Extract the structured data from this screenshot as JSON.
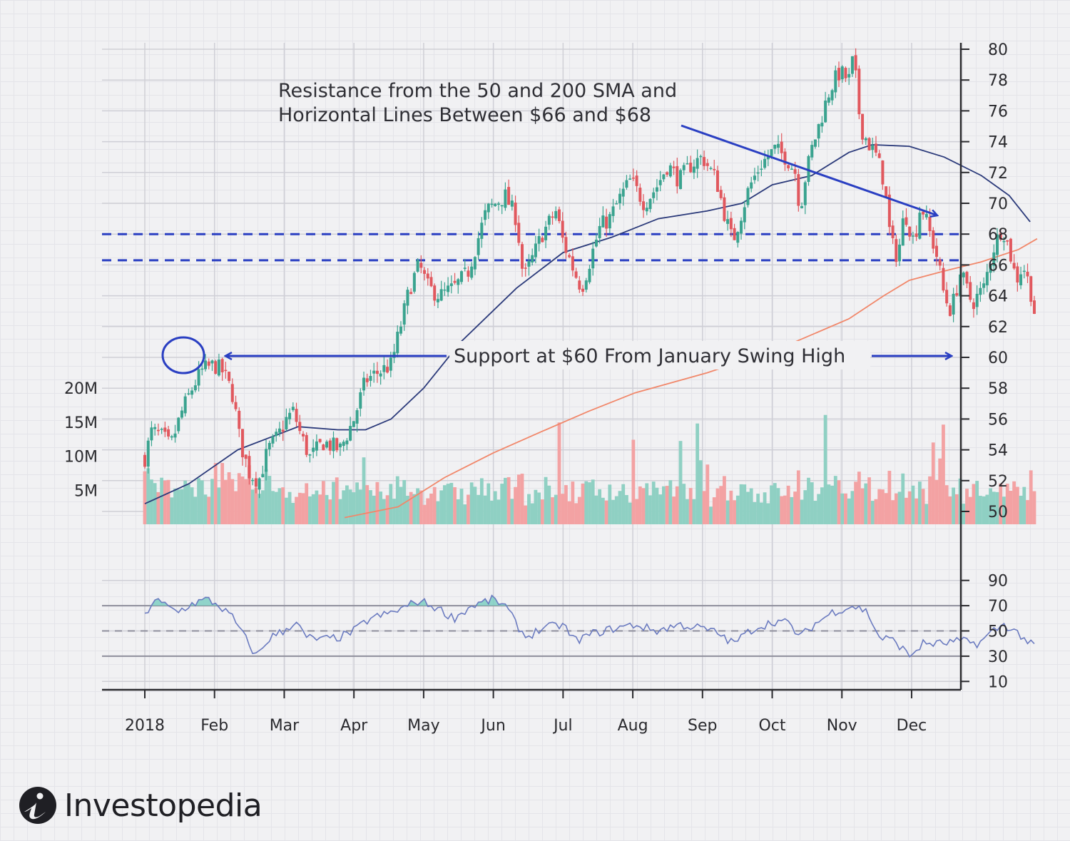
{
  "chart_data": {
    "type": "candlestick",
    "title": "",
    "xlabel": "",
    "ylabel": "",
    "x_tick_labels": [
      "2018",
      "Feb",
      "Mar",
      "Apr",
      "May",
      "Jun",
      "Jul",
      "Aug",
      "Sep",
      "Oct",
      "Nov",
      "Dec"
    ],
    "price_axis": {
      "ylim": [
        50,
        80
      ],
      "ticks": [
        50,
        52,
        54,
        56,
        58,
        60,
        62,
        64,
        66,
        68,
        70,
        72,
        74,
        76,
        78,
        80
      ]
    },
    "volume_axis": {
      "ticks": [
        5,
        10,
        15,
        20
      ],
      "tick_labels": [
        "5M",
        "10M",
        "15M",
        "20M"
      ]
    },
    "rsi_axis": {
      "ylim": [
        0,
        100
      ],
      "ticks": [
        10,
        30,
        50,
        70,
        90
      ],
      "reference_lines": [
        30,
        50,
        70
      ]
    },
    "horizontal_levels": [
      66.3,
      68.0
    ],
    "price_path": [
      {
        "date": "2018-01-01",
        "price": 53.5
      },
      {
        "date": "2018-01-04",
        "price": 55.2
      },
      {
        "date": "2018-01-09",
        "price": 54.8
      },
      {
        "date": "2018-01-12",
        "price": 54.2
      },
      {
        "date": "2018-01-17",
        "price": 56.5
      },
      {
        "date": "2018-01-22",
        "price": 58.2
      },
      {
        "date": "2018-01-26",
        "price": 59.2
      },
      {
        "date": "2018-01-31",
        "price": 59.5
      },
      {
        "date": "2018-02-04",
        "price": 59.0
      },
      {
        "date": "2018-02-08",
        "price": 57.5
      },
      {
        "date": "2018-02-11",
        "price": 54.5
      },
      {
        "date": "2018-02-15",
        "price": 52.5
      },
      {
        "date": "2018-02-19",
        "price": 52.0
      },
      {
        "date": "2018-02-23",
        "price": 54.0
      },
      {
        "date": "2018-02-27",
        "price": 54.8
      },
      {
        "date": "2018-03-03",
        "price": 56.0
      },
      {
        "date": "2018-03-06",
        "price": 56.5
      },
      {
        "date": "2018-03-09",
        "price": 55.0
      },
      {
        "date": "2018-03-13",
        "price": 53.5
      },
      {
        "date": "2018-03-19",
        "price": 54.5
      },
      {
        "date": "2018-03-26",
        "price": 54.0
      },
      {
        "date": "2018-04-01",
        "price": 56.0
      },
      {
        "date": "2018-04-06",
        "price": 58.5
      },
      {
        "date": "2018-04-11",
        "price": 59.0
      },
      {
        "date": "2018-04-17",
        "price": 59.5
      },
      {
        "date": "2018-04-21",
        "price": 62.0
      },
      {
        "date": "2018-04-25",
        "price": 64.5
      },
      {
        "date": "2018-04-29",
        "price": 66.0
      },
      {
        "date": "2018-05-03",
        "price": 64.5
      },
      {
        "date": "2018-05-08",
        "price": 64.0
      },
      {
        "date": "2018-05-14",
        "price": 64.5
      },
      {
        "date": "2018-05-20",
        "price": 65.5
      },
      {
        "date": "2018-05-24",
        "price": 67.5
      },
      {
        "date": "2018-05-28",
        "price": 69.5
      },
      {
        "date": "2018-06-01",
        "price": 70.0
      },
      {
        "date": "2018-06-05",
        "price": 70.5
      },
      {
        "date": "2018-06-10",
        "price": 69.0
      },
      {
        "date": "2018-06-13",
        "price": 65.0
      },
      {
        "date": "2018-06-17",
        "price": 66.5
      },
      {
        "date": "2018-06-21",
        "price": 68.0
      },
      {
        "date": "2018-06-27",
        "price": 69.5
      },
      {
        "date": "2018-06-30",
        "price": 67.5
      },
      {
        "date": "2018-07-05",
        "price": 65.5
      },
      {
        "date": "2018-07-08",
        "price": 64.5
      },
      {
        "date": "2018-07-12",
        "price": 66.5
      },
      {
        "date": "2018-07-16",
        "price": 68.5
      },
      {
        "date": "2018-07-20",
        "price": 69.0
      },
      {
        "date": "2018-07-25",
        "price": 70.5
      },
      {
        "date": "2018-07-29",
        "price": 71.5
      },
      {
        "date": "2018-08-04",
        "price": 70.0
      },
      {
        "date": "2018-08-09",
        "price": 71.0
      },
      {
        "date": "2018-08-14",
        "price": 72.5
      },
      {
        "date": "2018-08-19",
        "price": 71.5
      },
      {
        "date": "2018-08-24",
        "price": 72.5
      },
      {
        "date": "2018-08-29",
        "price": 73.0
      },
      {
        "date": "2018-09-04",
        "price": 71.5
      },
      {
        "date": "2018-09-08",
        "price": 69.0
      },
      {
        "date": "2018-09-11",
        "price": 67.5
      },
      {
        "date": "2018-09-15",
        "price": 69.5
      },
      {
        "date": "2018-09-18",
        "price": 71.0
      },
      {
        "date": "2018-09-23",
        "price": 72.5
      },
      {
        "date": "2018-09-29",
        "price": 73.5
      },
      {
        "date": "2018-10-04",
        "price": 73.0
      },
      {
        "date": "2018-10-08",
        "price": 72.0
      },
      {
        "date": "2018-10-10",
        "price": 69.5
      },
      {
        "date": "2018-10-12",
        "price": 71.5
      },
      {
        "date": "2018-10-15",
        "price": 73.5
      },
      {
        "date": "2018-10-19",
        "price": 75.5
      },
      {
        "date": "2018-10-23",
        "price": 77.5
      },
      {
        "date": "2018-10-27",
        "price": 78.5
      },
      {
        "date": "2018-10-31",
        "price": 78.0
      },
      {
        "date": "2018-11-02",
        "price": 79.5
      },
      {
        "date": "2018-11-05",
        "price": 75.0
      },
      {
        "date": "2018-11-08",
        "price": 74.0
      },
      {
        "date": "2018-11-12",
        "price": 73.0
      },
      {
        "date": "2018-11-15",
        "price": 71.5
      },
      {
        "date": "2018-11-18",
        "price": 67.5
      },
      {
        "date": "2018-11-21",
        "price": 66.5
      },
      {
        "date": "2018-11-24",
        "price": 69.5
      },
      {
        "date": "2018-11-28",
        "price": 67.5
      },
      {
        "date": "2018-12-01",
        "price": 70.0
      },
      {
        "date": "2018-12-05",
        "price": 68.0
      },
      {
        "date": "2018-12-08",
        "price": 66.5
      },
      {
        "date": "2018-12-11",
        "price": 64.0
      },
      {
        "date": "2018-12-14",
        "price": 63.0
      },
      {
        "date": "2018-12-18",
        "price": 65.5
      },
      {
        "date": "2018-12-23",
        "price": 63.5
      },
      {
        "date": "2018-12-28",
        "price": 64.5
      },
      {
        "date": "2019-01-01",
        "price": 67.0
      },
      {
        "date": "2019-01-05",
        "price": 68.5
      },
      {
        "date": "2019-01-08",
        "price": 67.0
      },
      {
        "date": "2019-01-11",
        "price": 65.0
      },
      {
        "date": "2019-01-14",
        "price": 66.0
      },
      {
        "date": "2019-01-17",
        "price": 64.5
      },
      {
        "date": "2019-01-20",
        "price": 62.0
      }
    ],
    "sma_50": [
      {
        "date": "2018-01-01",
        "price": 50.5
      },
      {
        "date": "2018-01-20",
        "price": 51.8
      },
      {
        "date": "2018-02-10",
        "price": 54.0
      },
      {
        "date": "2018-03-08",
        "price": 55.5
      },
      {
        "date": "2018-03-25",
        "price": 55.3
      },
      {
        "date": "2018-04-06",
        "price": 55.3
      },
      {
        "date": "2018-04-17",
        "price": 56.0
      },
      {
        "date": "2018-05-01",
        "price": 58.0
      },
      {
        "date": "2018-05-17",
        "price": 61.0
      },
      {
        "date": "2018-06-10",
        "price": 64.5
      },
      {
        "date": "2018-06-30",
        "price": 66.8
      },
      {
        "date": "2018-07-21",
        "price": 67.8
      },
      {
        "date": "2018-08-10",
        "price": 69.0
      },
      {
        "date": "2018-08-31",
        "price": 69.5
      },
      {
        "date": "2018-09-15",
        "price": 70.0
      },
      {
        "date": "2018-09-28",
        "price": 71.2
      },
      {
        "date": "2018-10-15",
        "price": 71.8
      },
      {
        "date": "2018-10-31",
        "price": 73.3
      },
      {
        "date": "2018-11-10",
        "price": 73.8
      },
      {
        "date": "2018-11-26",
        "price": 73.7
      },
      {
        "date": "2018-12-11",
        "price": 73.0
      },
      {
        "date": "2018-12-27",
        "price": 71.8
      },
      {
        "date": "2019-01-08",
        "price": 70.5
      },
      {
        "date": "2019-01-17",
        "price": 68.8
      }
    ],
    "sma_200": [
      {
        "date": "2018-03-28",
        "price": 49.6
      },
      {
        "date": "2018-04-20",
        "price": 50.3
      },
      {
        "date": "2018-05-10",
        "price": 52.2
      },
      {
        "date": "2018-05-31",
        "price": 53.8
      },
      {
        "date": "2018-06-21",
        "price": 55.2
      },
      {
        "date": "2018-07-11",
        "price": 56.5
      },
      {
        "date": "2018-07-31",
        "price": 57.7
      },
      {
        "date": "2018-08-31",
        "price": 59.0
      },
      {
        "date": "2018-09-30",
        "price": 60.5
      },
      {
        "date": "2018-10-31",
        "price": 62.5
      },
      {
        "date": "2018-11-15",
        "price": 64.0
      },
      {
        "date": "2018-11-26",
        "price": 65.0
      },
      {
        "date": "2018-12-11",
        "price": 65.6
      },
      {
        "date": "2018-12-27",
        "price": 66.2
      },
      {
        "date": "2019-01-12",
        "price": 67.0
      },
      {
        "date": "2019-01-20",
        "price": 67.7
      }
    ],
    "rsi": [
      {
        "date": "2018-01-01",
        "value": 62
      },
      {
        "date": "2018-01-05",
        "value": 75
      },
      {
        "date": "2018-01-10",
        "value": 70
      },
      {
        "date": "2018-01-15",
        "value": 65
      },
      {
        "date": "2018-01-22",
        "value": 72
      },
      {
        "date": "2018-01-28",
        "value": 75
      },
      {
        "date": "2018-02-02",
        "value": 70
      },
      {
        "date": "2018-02-08",
        "value": 60
      },
      {
        "date": "2018-02-13",
        "value": 45
      },
      {
        "date": "2018-02-18",
        "value": 30
      },
      {
        "date": "2018-02-24",
        "value": 45
      },
      {
        "date": "2018-03-02",
        "value": 50
      },
      {
        "date": "2018-03-07",
        "value": 58
      },
      {
        "date": "2018-03-11",
        "value": 45
      },
      {
        "date": "2018-03-18",
        "value": 43
      },
      {
        "date": "2018-03-26",
        "value": 45
      },
      {
        "date": "2018-04-01",
        "value": 50
      },
      {
        "date": "2018-04-08",
        "value": 60
      },
      {
        "date": "2018-04-15",
        "value": 63
      },
      {
        "date": "2018-04-22",
        "value": 68
      },
      {
        "date": "2018-04-29",
        "value": 74
      },
      {
        "date": "2018-05-07",
        "value": 68
      },
      {
        "date": "2018-05-14",
        "value": 60
      },
      {
        "date": "2018-05-22",
        "value": 70
      },
      {
        "date": "2018-05-31",
        "value": 75
      },
      {
        "date": "2018-06-05",
        "value": 70
      },
      {
        "date": "2018-06-10",
        "value": 55
      },
      {
        "date": "2018-06-14",
        "value": 45
      },
      {
        "date": "2018-06-21",
        "value": 52
      },
      {
        "date": "2018-06-30",
        "value": 55
      },
      {
        "date": "2018-07-05",
        "value": 42
      },
      {
        "date": "2018-07-13",
        "value": 48
      },
      {
        "date": "2018-07-22",
        "value": 52
      },
      {
        "date": "2018-07-31",
        "value": 55
      },
      {
        "date": "2018-08-09",
        "value": 50
      },
      {
        "date": "2018-08-19",
        "value": 55
      },
      {
        "date": "2018-08-29",
        "value": 52
      },
      {
        "date": "2018-09-05",
        "value": 48
      },
      {
        "date": "2018-09-11",
        "value": 40
      },
      {
        "date": "2018-09-20",
        "value": 52
      },
      {
        "date": "2018-09-30",
        "value": 58
      },
      {
        "date": "2018-10-05",
        "value": 56
      },
      {
        "date": "2018-10-10",
        "value": 45
      },
      {
        "date": "2018-10-16",
        "value": 55
      },
      {
        "date": "2018-10-24",
        "value": 65
      },
      {
        "date": "2018-11-02",
        "value": 70
      },
      {
        "date": "2018-11-08",
        "value": 65
      },
      {
        "date": "2018-11-13",
        "value": 45
      },
      {
        "date": "2018-11-20",
        "value": 42
      },
      {
        "date": "2018-11-26",
        "value": 30
      },
      {
        "date": "2018-12-02",
        "value": 40
      },
      {
        "date": "2018-12-10",
        "value": 40
      },
      {
        "date": "2018-12-18",
        "value": 42
      },
      {
        "date": "2018-12-26",
        "value": 40
      },
      {
        "date": "2019-01-01",
        "value": 50
      },
      {
        "date": "2019-01-06",
        "value": 55
      },
      {
        "date": "2019-01-12",
        "value": 48
      },
      {
        "date": "2019-01-20",
        "value": 35
      }
    ],
    "annotations": {
      "resistance_line1": "Resistance from the 50 and 200 SMA and",
      "resistance_line2": "Horizontal Lines Between $66 and $68",
      "support": "Support at $60 From January Swing High"
    },
    "colors": {
      "up": "#3aa38f",
      "down": "#e1585e",
      "up_volume": "#8fd0c3",
      "down_volume": "#f3a2a3",
      "sma_50": "#2b3a7a",
      "sma_200": "#f1876a",
      "level_lines": "#2a3fc2",
      "annotation_arrows": "#2a3fc2",
      "rsi": "#6b7bc0"
    },
    "grid": true
  },
  "brand": {
    "name": "Investopedia",
    "logo_icon": "investopedia-logo-icon"
  }
}
